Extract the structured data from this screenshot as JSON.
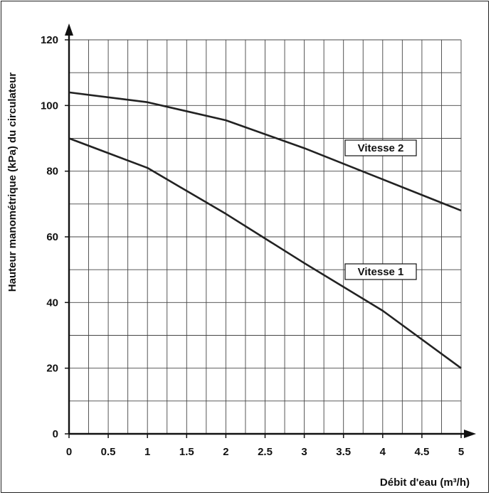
{
  "chart_data": {
    "type": "line",
    "title": "",
    "xlabel": "Débit d'eau (m³/h)",
    "ylabel": "Hauteur manométrique (kPa)   du circulateur",
    "xlim": [
      0,
      5
    ],
    "ylim": [
      0,
      120
    ],
    "x_ticks": [
      "0",
      "0.5",
      "1",
      "1.5",
      "2",
      "2.5",
      "3",
      "3.5",
      "4",
      "4.5",
      "5"
    ],
    "y_ticks": [
      "0",
      "20",
      "40",
      "60",
      "80",
      "100",
      "120"
    ],
    "grid": true,
    "series": [
      {
        "name": "Vitesse 2",
        "x": [
          0,
          1,
          2,
          3,
          4,
          5
        ],
        "y": [
          104,
          101,
          95.5,
          87,
          77.5,
          68
        ]
      },
      {
        "name": "Vitesse 1",
        "x": [
          0,
          1,
          2,
          3,
          4,
          5
        ],
        "y": [
          90,
          81,
          67,
          52,
          37.5,
          20
        ]
      }
    ],
    "colors": {
      "line": "#222222",
      "grid": "#444444",
      "axis": "#111111"
    }
  }
}
